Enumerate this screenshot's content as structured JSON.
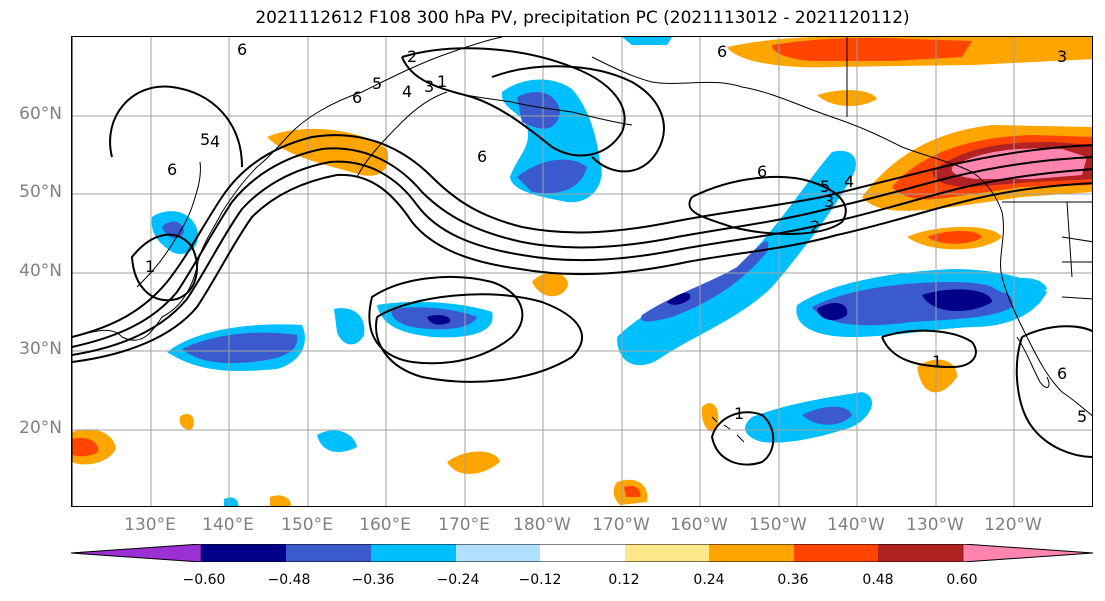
{
  "title": "2021112612 F108 300 hPa PV, precipitation PC (2021113012 - 2021120112)",
  "lat_labels": [
    "60°N",
    "50°N",
    "40°N",
    "30°N",
    "20°N"
  ],
  "lon_labels": [
    "130°E",
    "140°E",
    "150°E",
    "160°E",
    "170°E",
    "180°W",
    "170°W",
    "160°W",
    "150°W",
    "140°W",
    "130°W",
    "120°W"
  ],
  "colorbar": {
    "ticks": [
      "−0.60",
      "−0.48",
      "−0.36",
      "−0.24",
      "−0.12",
      "0.12",
      "0.24",
      "0.36",
      "0.48",
      "0.60"
    ],
    "colors": [
      "#9b30d4",
      "#00008b",
      "#3a5acd",
      "#00bfff",
      "#b0e0ff",
      "#ffffff",
      "#ffe88a",
      "#ffa500",
      "#ff4500",
      "#b22222",
      "#ff85b0"
    ]
  },
  "contour_labels": [
    "6",
    "5",
    "4",
    "3",
    "2",
    "1",
    "6",
    "6",
    "6",
    "6",
    "5",
    "4",
    "3",
    "2",
    "6",
    "4",
    "5",
    "1",
    "1",
    "1",
    "6",
    "5",
    "3"
  ],
  "colors": {
    "coast": "#000000",
    "contour": "#000000",
    "grid": "#a0a0a0",
    "tick_label": "#808080"
  }
}
